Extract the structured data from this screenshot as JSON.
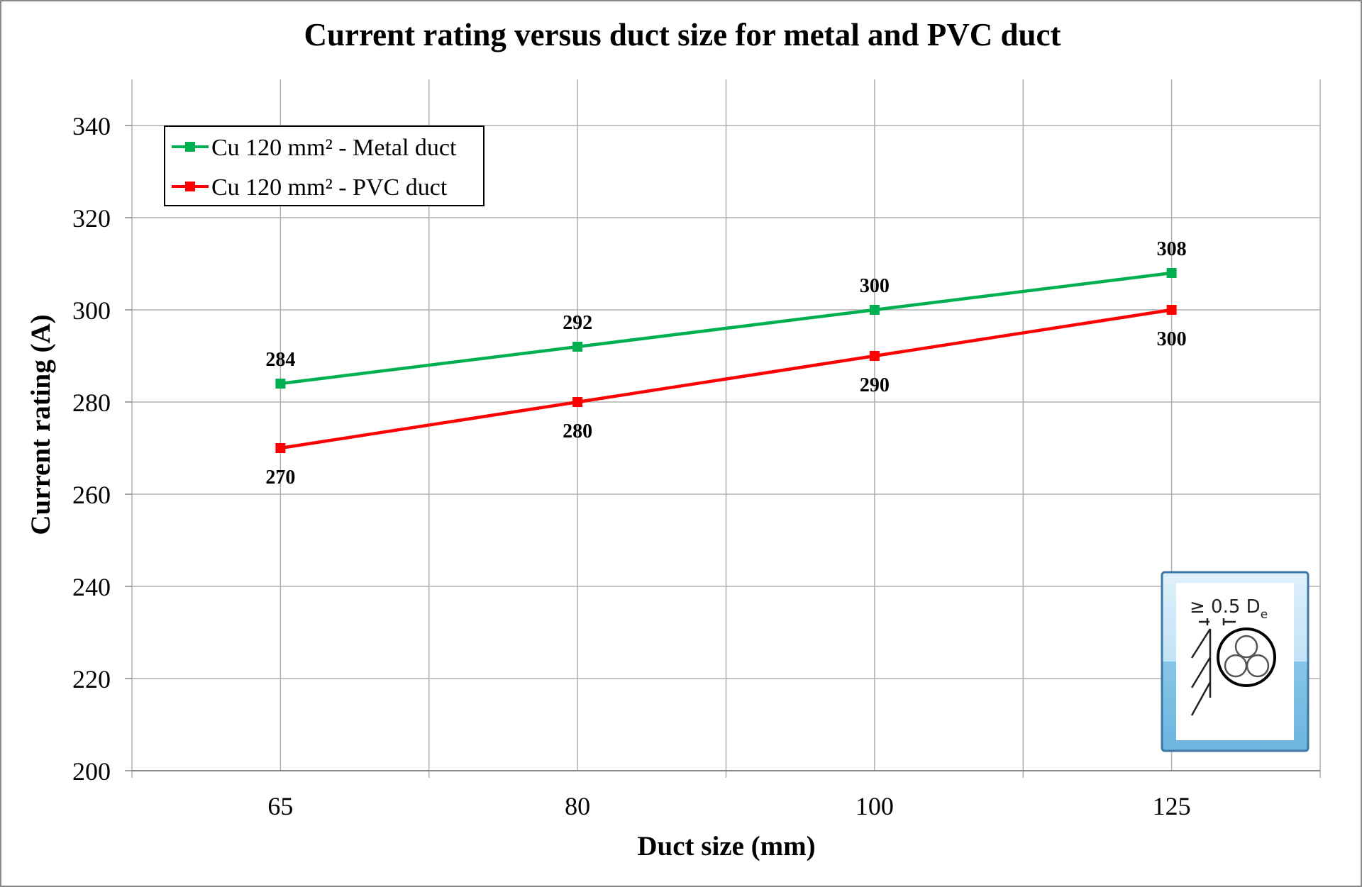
{
  "chart_data": {
    "type": "line",
    "title": "Current rating versus duct size for metal and PVC duct",
    "xlabel": "Duct size (mm)",
    "ylabel": "Current rating (A)",
    "categories": [
      "65",
      "80",
      "100",
      "125"
    ],
    "ylim": [
      200,
      350
    ],
    "yticks": [
      200,
      220,
      240,
      260,
      280,
      300,
      320,
      340
    ],
    "grid": true,
    "legend_position": "top-left",
    "series": [
      {
        "name": "Cu 120 mm² - Metal duct",
        "color": "#00b050",
        "values": [
          284,
          292,
          300,
          308
        ],
        "label_position": "above"
      },
      {
        "name": "Cu 120 mm² - PVC duct",
        "color": "#ff0000",
        "values": [
          270,
          280,
          290,
          300
        ],
        "label_position": "below"
      }
    ]
  },
  "inset": {
    "label": "≥ 0.5 D",
    "subscript": "e",
    "icon": "cable-in-duct-spacing-icon"
  }
}
